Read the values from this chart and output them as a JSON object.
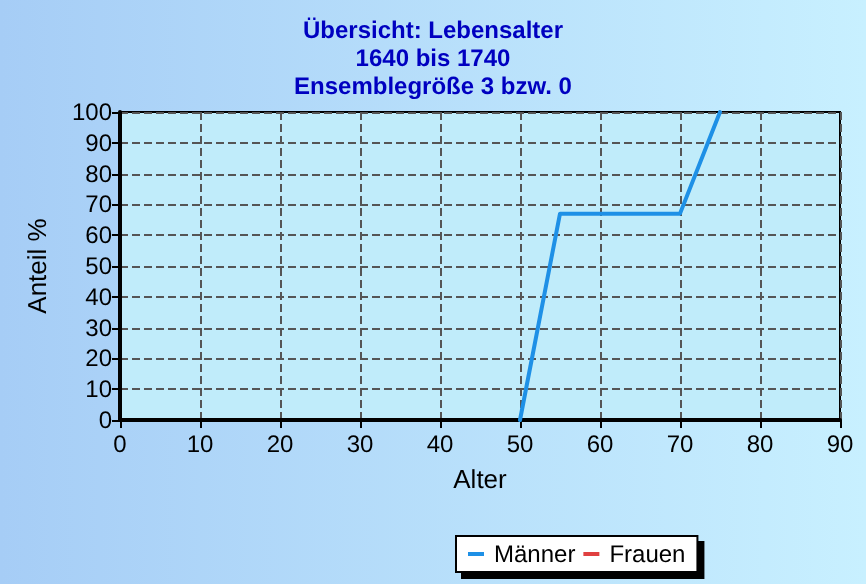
{
  "chart_data": {
    "type": "line",
    "title": "Übersicht: Lebensalter\n1640 bis 1740\nEnsemblegröße 3 bzw. 0",
    "xlabel": "Alter",
    "ylabel": "Anteil %",
    "series": [
      {
        "name": "Männer",
        "color": "#1e90e6",
        "x": [
          50,
          55,
          70,
          75
        ],
        "values": [
          0,
          67,
          67,
          100
        ]
      },
      {
        "name": "Frauen",
        "color": "#e04040"
      }
    ],
    "xlim": [
      0,
      90
    ],
    "xticks": [
      0,
      10,
      20,
      30,
      40,
      50,
      60,
      70,
      80,
      90
    ],
    "ylim": [
      0,
      100
    ],
    "yticks": [
      0,
      10,
      20,
      30,
      40,
      50,
      60,
      70,
      80,
      90,
      100
    ],
    "grid": true,
    "legend": "bottom",
    "marker": "none",
    "line_style": "solid"
  }
}
